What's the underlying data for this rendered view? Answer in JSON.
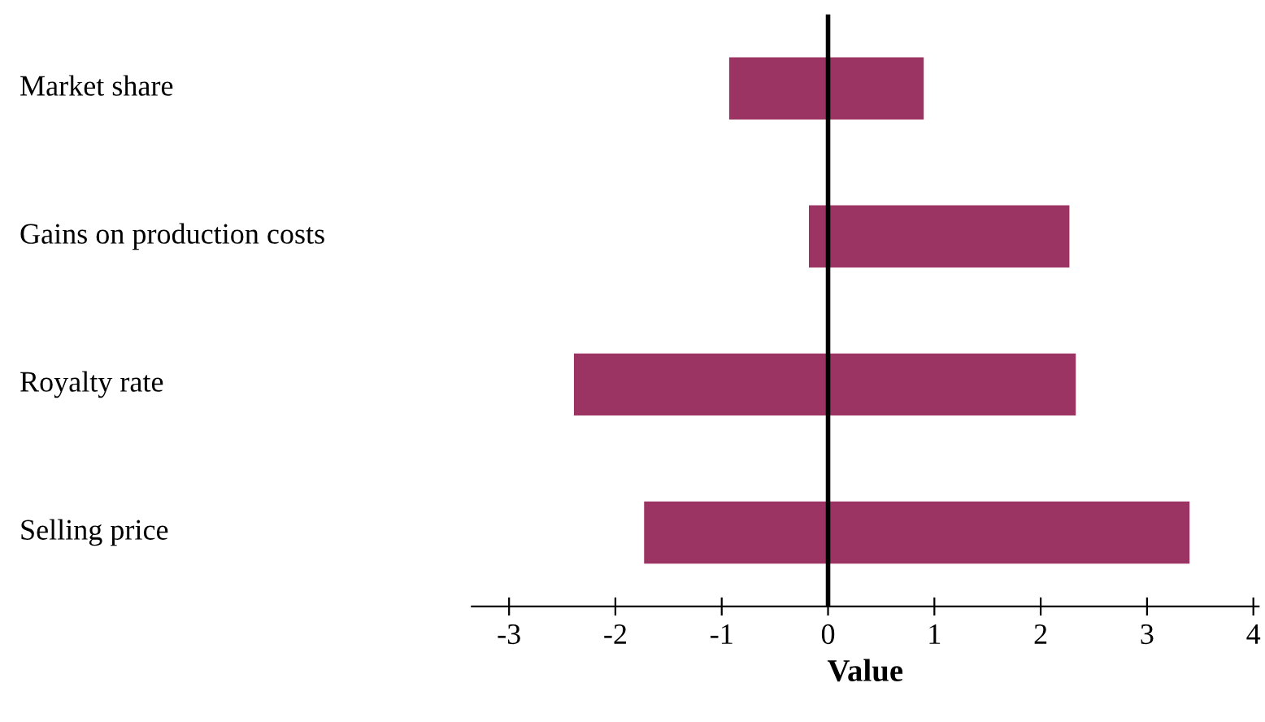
{
  "chart_data": {
    "type": "bar",
    "orientation": "horizontal",
    "xlabel": "Value",
    "categories": [
      "Market share",
      "Gains on production costs",
      "Royalty rate",
      "Selling price"
    ],
    "base": [
      -0.93,
      -0.18,
      -2.39,
      -1.73
    ],
    "values": [
      1.83,
      2.45,
      4.72,
      5.13
    ],
    "color": "#9b3363",
    "xlim": [
      -3.35,
      4.05
    ],
    "xticks": [
      -3,
      -2,
      -1,
      0,
      1,
      2,
      3,
      4
    ],
    "ref_lines": [
      {
        "axis": "x",
        "value": 0,
        "color": "#000000"
      }
    ],
    "grid": false
  }
}
